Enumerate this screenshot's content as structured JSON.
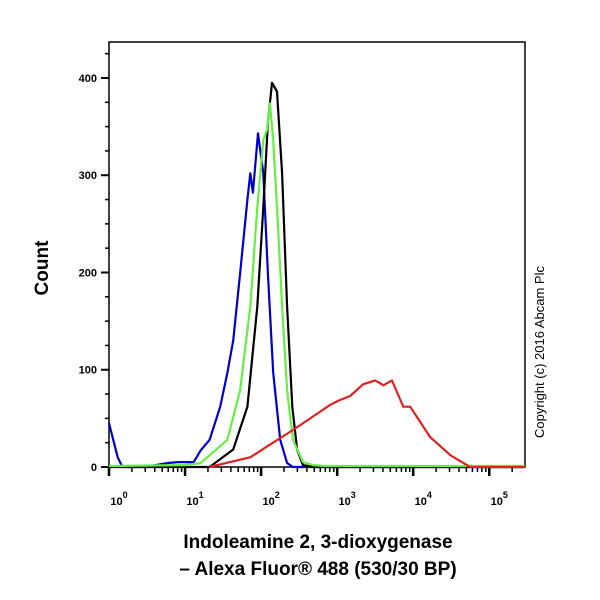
{
  "chart_data": {
    "type": "line",
    "xlabel_line1": "Indoleamine 2, 3-dioxygenase",
    "xlabel_line2": "– Alexa Fluor® 488 (530/30 BP)",
    "ylabel": "Count",
    "annotation": "Copyright (c) 2016 Abcam Plc",
    "x_scale": "log",
    "xlim": [
      1,
      295000
    ],
    "ylim": [
      0,
      437
    ],
    "y_ticks": [
      0,
      100,
      200,
      300,
      400
    ],
    "x_ticks": [
      {
        "base": "10",
        "exp": "0",
        "value": 1
      },
      {
        "base": "10",
        "exp": "1",
        "value": 10
      },
      {
        "base": "10",
        "exp": "2",
        "value": 100
      },
      {
        "base": "10",
        "exp": "3",
        "value": 1000
      },
      {
        "base": "10",
        "exp": "4",
        "value": 10000
      },
      {
        "base": "10",
        "exp": "5",
        "value": 100000
      }
    ],
    "grid": false,
    "legend": "none",
    "series": [
      {
        "color": "#0000cc",
        "x": [
          1.0,
          1.3,
          1.5,
          3,
          5.8,
          8,
          13,
          16,
          21,
          29,
          36,
          43,
          53,
          66,
          72,
          78,
          91,
          107,
          123,
          144,
          178,
          220,
          263,
          400,
          295000
        ],
        "y": [
          45,
          10,
          0,
          0,
          4,
          5,
          5,
          17,
          28,
          62,
          97,
          130,
          199,
          275,
          302,
          282,
          343,
          302,
          199,
          97,
          28,
          4,
          0,
          0,
          0
        ]
      },
      {
        "color": "#000000",
        "x": [
          1,
          21,
          43,
          66,
          89,
          107,
          123,
          139,
          162,
          189,
          220,
          257,
          297,
          356,
          480,
          295000
        ],
        "y": [
          0,
          0,
          18,
          62,
          165,
          267,
          354,
          395,
          386,
          302,
          165,
          62,
          18,
          2,
          0,
          0
        ]
      },
      {
        "color": "#66ee44",
        "x": [
          1,
          10,
          16,
          36,
          53,
          72,
          89,
          107,
          120,
          131,
          144,
          162,
          189,
          220,
          263,
          356,
          480,
          700,
          295000
        ],
        "y": [
          1,
          2,
          4,
          28,
          79,
          165,
          267,
          336,
          347,
          374,
          336,
          267,
          165,
          79,
          28,
          5,
          2,
          1,
          1
        ]
      },
      {
        "color": "#dd2222",
        "x": [
          21,
          39,
          72,
          131,
          263,
          550,
          810,
          1100,
          1480,
          2190,
          3160,
          4070,
          5250,
          7410,
          9120,
          16600,
          30900,
          56200,
          295000
        ],
        "y": [
          0,
          5,
          10,
          23,
          38,
          55,
          64,
          69,
          73,
          85,
          89,
          84,
          89,
          62,
          62,
          31,
          12,
          0,
          0
        ]
      }
    ]
  }
}
